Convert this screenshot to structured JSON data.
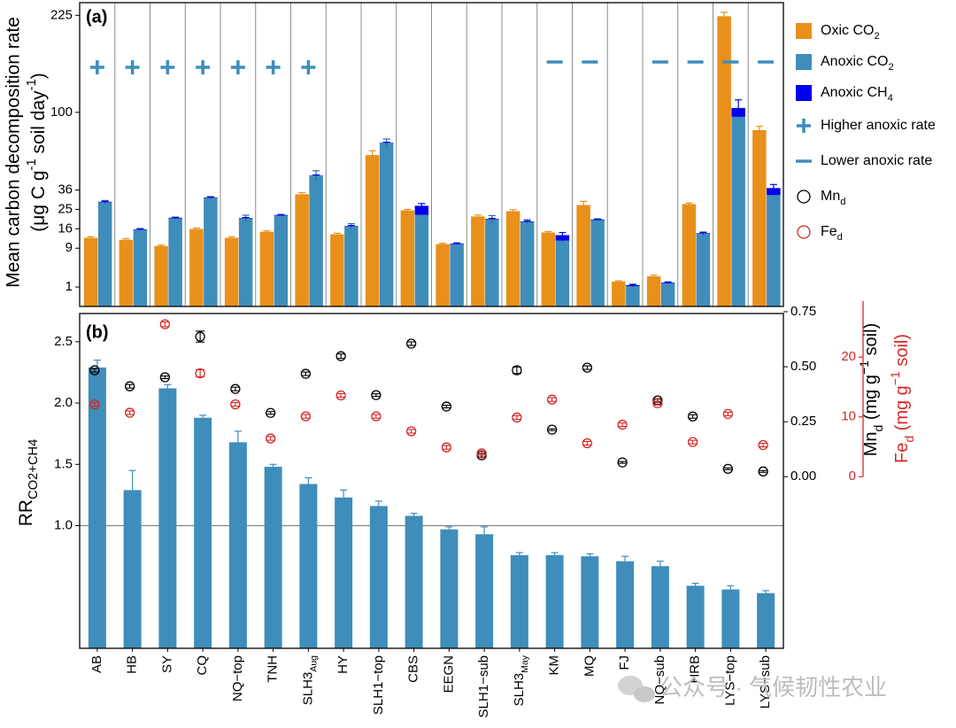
{
  "chart_data": [
    {
      "type": "bar",
      "panel_label": "(a)",
      "y_label": [
        "Mean carbon decomposition rate",
        [
          {
            "text": "(μg C g"
          },
          {
            "sup": "-1"
          },
          {
            "text": " soil day"
          },
          {
            "sup": "-1"
          },
          {
            "text": ")"
          }
        ]
      ],
      "yscale": "sqrt",
      "ylim": [
        0,
        245
      ],
      "yticks": [
        1,
        9,
        16,
        25,
        36,
        100,
        225
      ],
      "series": [
        {
          "name": [
            {
              "text": "Oxic CO"
            },
            {
              "sub": "2"
            }
          ],
          "color": "#e8901a",
          "values": [
            12.5,
            11.8,
            9.7,
            15.9,
            12.5,
            14.8,
            33.4,
            13.8,
            60.8,
            24.5,
            10.3,
            21.5,
            24.1,
            14.5,
            27.3,
            1.65,
            2.4,
            27.8,
            223.6,
            82.5
          ],
          "errors": [
            0.4,
            0.4,
            0.3,
            0.4,
            0.4,
            0.4,
            1,
            0.4,
            3.5,
            0.5,
            0.3,
            0.7,
            0.8,
            0.4,
            2,
            0.1,
            0.2,
            0.6,
            6,
            3.6
          ]
        },
        {
          "name": [
            {
              "text": "Anoxic CO"
            },
            {
              "sub": "2"
            }
          ],
          "color": "#3f8dbb",
          "values": [
            28.8,
            15.6,
            20.6,
            31.3,
            20.6,
            21.9,
            45.5,
            17.0,
            71.2,
            22.3,
            10.3,
            20.2,
            19.0,
            11.5,
            19.8,
            1.1,
            1.4,
            14.1,
            95.5,
            32.9
          ],
          "errors": [
            1,
            0.5,
            0.5,
            0.7,
            1.5,
            0.5,
            3.4,
            1.2,
            3.2,
            0.5,
            0.3,
            1.7,
            1,
            0.5,
            0.5,
            0.1,
            0.1,
            0.6,
            0.5,
            0.5
          ]
        },
        {
          "name": [
            {
              "text": "Anoxic CH"
            },
            {
              "sub": "4"
            }
          ],
          "color": "#0000ee",
          "stack": true,
          "values": [
            0.3,
            0.2,
            0.3,
            0.3,
            0.2,
            0.3,
            0.2,
            0.2,
            0.2,
            4.6,
            0.2,
            0.2,
            0.2,
            2.0,
            0.3,
            0.1,
            0.1,
            0.2,
            9.1,
            4.3
          ],
          "errors": [
            0.2,
            0.2,
            0.2,
            0.2,
            0.2,
            0.2,
            0.2,
            0.2,
            0.2,
            1.2,
            0.2,
            0.2,
            0.2,
            1.0,
            0.2,
            0.1,
            0.1,
            0.2,
            8.7,
            2.3
          ]
        }
      ],
      "flags": [
        "higher",
        "higher",
        "higher",
        "higher",
        "higher",
        "higher",
        "higher",
        null,
        null,
        null,
        null,
        null,
        null,
        "lower",
        "lower",
        null,
        "lower",
        "lower",
        "lower",
        "lower"
      ],
      "flag_names": {
        "higher": "Higher anoxic rate",
        "lower": "Lower anoxic rate"
      },
      "flag_color": "#3f8dbb"
    },
    {
      "type": "bar",
      "panel_label": "(b)",
      "categories": [
        "AB",
        "HB",
        "SY",
        "CQ",
        "NQ−top",
        "TNH",
        {
          "text": "SLH3",
          "sub": "Aug"
        },
        "HY",
        "SLH1−top",
        "CBS",
        "EEGN",
        "SLH1−sub",
        {
          "text": "SLH3",
          "sub": "May"
        },
        "KM",
        "MQ",
        "FJ",
        "NQ−sub",
        "HRB",
        "LYS−top",
        "LYS−sub"
      ],
      "y_label": [
        {
          "text": "RR"
        },
        {
          "sub": "CO2+CH4"
        }
      ],
      "ylim": [
        0,
        2.73
      ],
      "yticks": [
        {
          "value": 1,
          "label": "1.0"
        },
        {
          "value": 1.5,
          "label": "1.5"
        },
        {
          "value": 2,
          "label": "2.0"
        },
        {
          "value": 2.5,
          "label": "2.5"
        }
      ],
      "hline": 1,
      "color": "#3f8dbb",
      "values": [
        2.29,
        1.29,
        2.12,
        1.88,
        1.68,
        1.48,
        1.34,
        1.23,
        1.16,
        1.08,
        0.97,
        0.93,
        0.76,
        0.76,
        0.75,
        0.71,
        0.67,
        0.51,
        0.48,
        0.45
      ],
      "errors": [
        0.06,
        0.16,
        0.03,
        0.02,
        0.09,
        0.02,
        0.05,
        0.06,
        0.04,
        0.02,
        0.02,
        0.06,
        0.02,
        0.02,
        0.02,
        0.04,
        0.04,
        0.02,
        0.03,
        0.02
      ],
      "y2_label": [
        {
          "text": "Mn"
        },
        {
          "sub": "d"
        },
        {
          "text": " (mg g"
        },
        {
          "sup": "−1"
        },
        {
          "text": " soil)"
        }
      ],
      "y2lim": [
        -0.78,
        0.742
      ],
      "y2ticks": [
        {
          "value": 0,
          "label": "0.00"
        },
        {
          "value": 0.25,
          "label": "0.25"
        },
        {
          "value": 0.5,
          "label": "0.50"
        },
        {
          "value": 0.75,
          "label": "0.75"
        }
      ],
      "y3_label": [
        {
          "text": "Fe"
        },
        {
          "sub": "d"
        },
        {
          "text": " (mg g"
        },
        {
          "sup": "−1"
        },
        {
          "text": " soil)"
        }
      ],
      "y3lim": [
        -28.7,
        27.3
      ],
      "y3ticks": [
        0,
        10,
        20
      ],
      "y3color": "#d62728",
      "series": [
        {
          "name": [
            {
              "text": "Mn"
            },
            {
              "sub": "d"
            }
          ],
          "axis": "y2",
          "color": "#000000",
          "values": [
            0.484,
            0.411,
            0.452,
            0.637,
            0.399,
            0.29,
            0.468,
            0.548,
            0.371,
            0.605,
            0.319,
            0.097,
            0.484,
            0.214,
            0.496,
            0.065,
            0.347,
            0.274,
            0.036,
            0.024
          ],
          "errors": [
            0.008,
            0.008,
            0.006,
            0.025,
            0.008,
            0.006,
            0.008,
            0.01,
            0.006,
            0.008,
            0.006,
            0.008,
            0.015,
            0.004,
            0.008,
            0.004,
            0.008,
            0.008,
            0.004,
            0.004
          ]
        },
        {
          "name": [
            {
              "text": "Fe"
            },
            {
              "sub": "d"
            }
          ],
          "axis": "y3",
          "color": "#d62728",
          "values": [
            12.1,
            10.7,
            25.5,
            17.3,
            12.1,
            6.4,
            10.1,
            13.6,
            10.1,
            7.6,
            4.9,
            3.9,
            9.9,
            12.9,
            5.6,
            8.7,
            12.3,
            5.8,
            10.5,
            5.3
          ],
          "errors": [
            0.3,
            0.3,
            0.4,
            0.6,
            0.3,
            0.3,
            0.3,
            0.3,
            0.3,
            0.3,
            0.3,
            0.3,
            0.3,
            0.3,
            0.3,
            0.3,
            0.3,
            0.3,
            0.3,
            0.3
          ]
        }
      ]
    }
  ],
  "watermark": "公众号 · 气候韧性农业"
}
